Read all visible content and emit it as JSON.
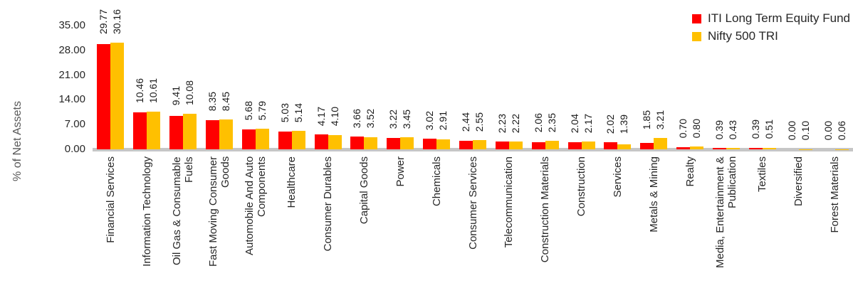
{
  "chart_data": {
    "type": "bar",
    "title": "",
    "xlabel": "",
    "ylabel": "% of Net Assets",
    "ylim": [
      0,
      35
    ],
    "yticks": [
      "0.00",
      "7.00",
      "14.00",
      "21.00",
      "28.00",
      "35.00"
    ],
    "grid": false,
    "legend_position": "top-right",
    "value_labels": "above-bars, rotated 90°, 2 decimals",
    "categories": [
      "Financial Services",
      "Information Technology",
      "Oil Gas & Consumable Fuels",
      "Fast Moving Consumer Goods",
      "Automobile And Auto Components",
      "Healthcare",
      "Consumer Durables",
      "Capital Goods",
      "Power",
      "Chemicals",
      "Consumer Services",
      "Telecommunication",
      "Construction Materials",
      "Construction",
      "Services",
      "Metals & Mining",
      "Realty",
      "Media, Entertainment & Publication",
      "Textiles",
      "Diversified",
      "Forest Materials"
    ],
    "series": [
      {
        "name": "ITI Long Term Equity Fund",
        "color": "#FF0000",
        "values": [
          29.77,
          10.46,
          9.41,
          8.35,
          5.68,
          5.03,
          4.17,
          3.66,
          3.22,
          3.02,
          2.44,
          2.23,
          2.06,
          2.04,
          2.02,
          1.85,
          0.7,
          0.39,
          0.39,
          0.0,
          0.0
        ]
      },
      {
        "name": "Nifty 500 TRI",
        "color": "#FFC000",
        "values": [
          30.16,
          10.61,
          10.08,
          8.45,
          5.79,
          5.14,
          4.1,
          3.52,
          3.45,
          2.91,
          2.55,
          2.22,
          2.35,
          2.17,
          1.39,
          3.21,
          0.8,
          0.43,
          0.51,
          0.1,
          0.06
        ]
      }
    ],
    "axis_line_color": "#c6c6c6"
  }
}
